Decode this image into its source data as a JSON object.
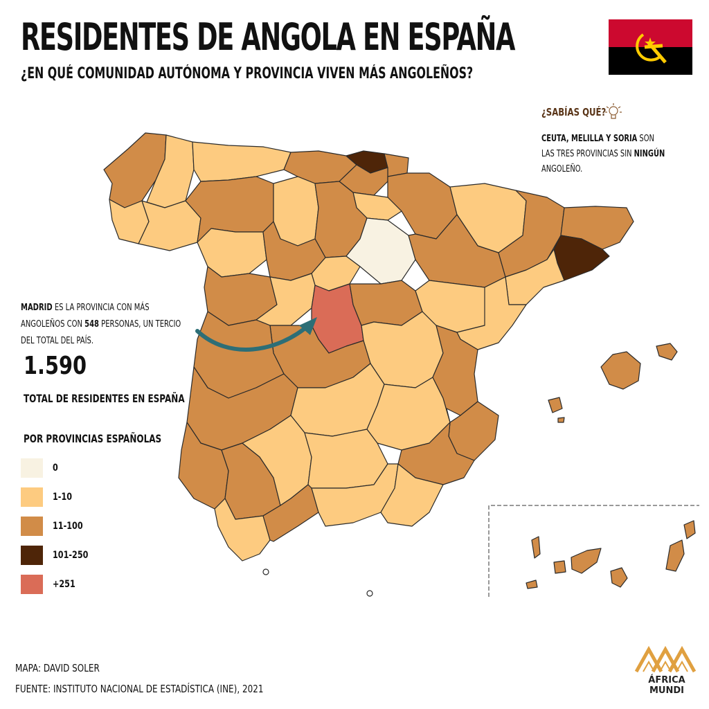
{
  "header": {
    "title": "RESIDENTES DE ANGOLA EN ESPAÑA",
    "subtitle": "¿EN QUÉ COMUNIDAD AUTÓNOMA Y PROVINCIA VIVEN MÁS ANGOLEÑOS?"
  },
  "flag": {
    "icon": "angola-flag-icon",
    "colors": {
      "top": "#CC092F",
      "bottom": "#000000",
      "emblem": "#FFCB00"
    }
  },
  "did_you_know": {
    "title": "¿SABÍAS QUÉ?",
    "icon": "lightbulb-icon",
    "text_bold_1": "CEUTA, MELILLA Y SORIA",
    "text_1": " SON LAS TRES PROVINCIAS SIN ",
    "text_bold_2": "NINGÚN",
    "text_2": " ANGOLEÑO."
  },
  "madrid_note": {
    "bold_1": "MADRID",
    "text_1": " ES LA PROVINCIA CON MÁS ANGOLEÑOS CON ",
    "bold_2": "548",
    "text_2": " PERSONAS, UN TERCIO DEL TOTAL DEL PAÍS."
  },
  "total": {
    "value": "1.590",
    "label": "TOTAL DE RESIDENTES EN ESPAÑA"
  },
  "legend": {
    "title": "POR PROVINCIAS ESPAÑOLAS",
    "items": [
      {
        "label": "0",
        "color": "#F8F2E2"
      },
      {
        "label": "1-10",
        "color": "#FDCB80"
      },
      {
        "label": "11-100",
        "color": "#D18C48"
      },
      {
        "label": "101-250",
        "color": "#4E2508"
      },
      {
        "label": "+251",
        "color": "#DA6C57"
      }
    ]
  },
  "map_colors": {
    "arrow": "#2D6E76",
    "border": "#2a2a2a"
  },
  "credits": {
    "author": "MAPA: DAVID SOLER",
    "source": "FUENTE: INSTITUTO NACIONAL DE ESTADÍSTICA (INE), 2021"
  },
  "logo": {
    "icon": "africa-mundi-mountains-logo",
    "line1": "ÁFRICA",
    "line2": "MUNDI",
    "color": "#E0A040"
  }
}
